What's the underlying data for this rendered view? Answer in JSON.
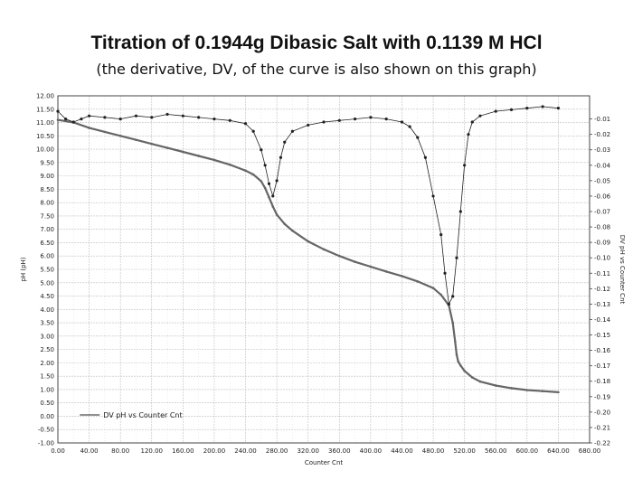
{
  "chart_data": {
    "type": "line",
    "title": "Titration of 0.1944g  Dibasic Salt with 0.1139 M HCl",
    "subtitle": "(the derivative, DV, of the curve is also shown on this graph)",
    "xlabel": "Counter Cnt",
    "ylabel": "pH (pH)",
    "y2label": "DV pH vs Counter Cnt",
    "xlim": [
      0,
      680
    ],
    "ylim": [
      -1,
      12
    ],
    "y2lim": [
      -0.22,
      0.005
    ],
    "grid": true,
    "legend_text": "DV pH vs Counter Cnt",
    "legend_placement": "bottom-left",
    "x_ticks": [
      "0.00",
      "40.00",
      "80.00",
      "120.00",
      "160.00",
      "200.00",
      "240.00",
      "280.00",
      "320.00",
      "360.00",
      "400.00",
      "440.00",
      "480.00",
      "520.00",
      "560.00",
      "600.00",
      "640.00",
      "680.00"
    ],
    "y_ticks": [
      "12.00",
      "11.50",
      "11.00",
      "10.50",
      "10.00",
      "9.50",
      "9.00",
      "8.50",
      "8.00",
      "7.50",
      "7.00",
      "6.50",
      "6.00",
      "5.50",
      "5.00",
      "4.50",
      "4.00",
      "3.50",
      "3.00",
      "2.50",
      "2.00",
      "1.50",
      "1.00",
      "0.50",
      "0.00",
      "-0.50",
      "-1.00"
    ],
    "y2_ticks": [
      "-0.01",
      "-0.02",
      "-0.03",
      "-0.04",
      "-0.05",
      "-0.06",
      "-0.07",
      "-0.08",
      "-0.09",
      "-0.10",
      "-0.11",
      "-0.12",
      "-0.13",
      "-0.14",
      "-0.15",
      "-0.16",
      "-0.17",
      "-0.18",
      "-0.19",
      "-0.20",
      "-0.21",
      "-0.22"
    ],
    "series": [
      {
        "name": "pH",
        "axis": "left",
        "color": "#666666",
        "x": [
          0,
          20,
          40,
          60,
          80,
          100,
          120,
          140,
          160,
          180,
          200,
          220,
          240,
          250,
          260,
          265,
          270,
          275,
          280,
          290,
          300,
          320,
          340,
          360,
          380,
          400,
          420,
          440,
          460,
          480,
          490,
          500,
          505,
          508,
          510,
          512,
          515,
          520,
          530,
          540,
          560,
          580,
          600,
          620,
          640
        ],
        "y": [
          11.1,
          11.0,
          10.8,
          10.65,
          10.5,
          10.35,
          10.2,
          10.05,
          9.9,
          9.75,
          9.6,
          9.42,
          9.2,
          9.05,
          8.8,
          8.55,
          8.2,
          7.85,
          7.55,
          7.2,
          6.95,
          6.55,
          6.25,
          6.0,
          5.78,
          5.6,
          5.42,
          5.25,
          5.05,
          4.8,
          4.55,
          4.15,
          3.5,
          2.8,
          2.3,
          2.05,
          1.9,
          1.7,
          1.45,
          1.3,
          1.15,
          1.05,
          0.98,
          0.94,
          0.9
        ]
      },
      {
        "name": "DV pH vs Counter Cnt",
        "axis": "right",
        "color": "#222222",
        "x": [
          0,
          10,
          20,
          30,
          40,
          60,
          80,
          100,
          120,
          140,
          160,
          180,
          200,
          220,
          240,
          250,
          260,
          265,
          270,
          275,
          280,
          285,
          290,
          300,
          320,
          340,
          360,
          380,
          400,
          420,
          440,
          450,
          460,
          470,
          480,
          490,
          495,
          500,
          505,
          510,
          515,
          520,
          525,
          530,
          540,
          560,
          580,
          600,
          620,
          640
        ],
        "y": [
          -0.005,
          -0.01,
          -0.012,
          -0.01,
          -0.008,
          -0.009,
          -0.01,
          -0.008,
          -0.009,
          -0.007,
          -0.008,
          -0.009,
          -0.01,
          -0.011,
          -0.013,
          -0.018,
          -0.03,
          -0.04,
          -0.052,
          -0.06,
          -0.05,
          -0.035,
          -0.025,
          -0.018,
          -0.014,
          -0.012,
          -0.011,
          -0.01,
          -0.009,
          -0.01,
          -0.012,
          -0.015,
          -0.022,
          -0.035,
          -0.06,
          -0.085,
          -0.11,
          -0.13,
          -0.125,
          -0.1,
          -0.07,
          -0.04,
          -0.02,
          -0.012,
          -0.008,
          -0.005,
          -0.004,
          -0.003,
          -0.002,
          -0.003
        ]
      }
    ]
  }
}
